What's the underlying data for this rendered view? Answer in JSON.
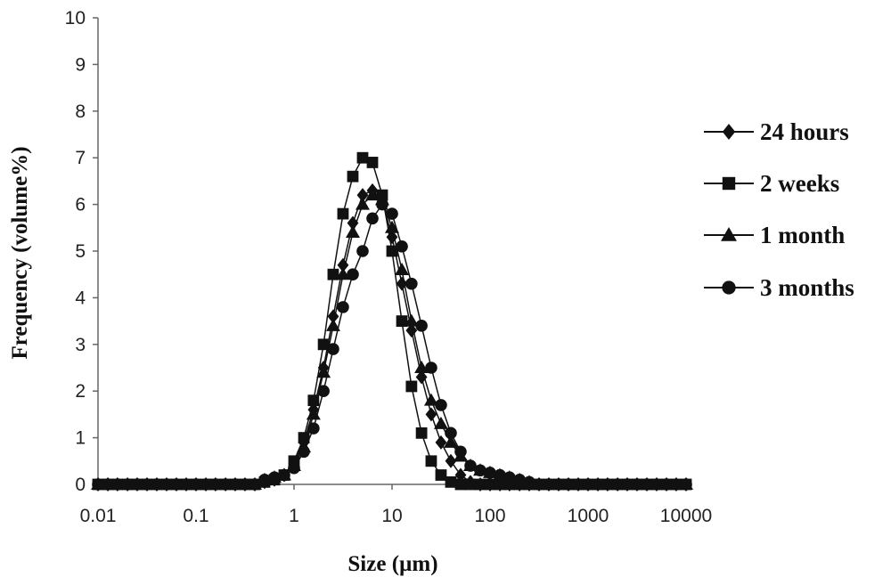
{
  "chart_data": {
    "type": "scatter",
    "title": "",
    "xlabel": "Size (µm)",
    "ylabel": "Frequency (volume%)",
    "xscale": "log",
    "xlim": [
      0.01,
      10000
    ],
    "ylim": [
      0,
      10
    ],
    "xticks": [
      "0.01",
      "0.1",
      "1",
      "10",
      "100",
      "1000",
      "10000"
    ],
    "yticks": [
      "0",
      "1",
      "2",
      "3",
      "4",
      "5",
      "6",
      "7",
      "8",
      "9",
      "10"
    ],
    "grid": false,
    "legend": "right",
    "series": [
      {
        "name": "24 hours",
        "marker": "diamond",
        "x": [
          0.01,
          0.0126,
          0.0158,
          0.02,
          0.0251,
          0.0316,
          0.0398,
          0.0501,
          0.0631,
          0.0794,
          0.1,
          0.126,
          0.158,
          0.2,
          0.251,
          0.316,
          0.398,
          0.501,
          0.631,
          0.794,
          1,
          1.26,
          1.58,
          2,
          2.51,
          3.16,
          3.98,
          5.01,
          6.31,
          7.94,
          10,
          12.6,
          15.8,
          20,
          25.1,
          31.6,
          39.8,
          50.1,
          63.1,
          79.4,
          100,
          126,
          158,
          200,
          251,
          316,
          398,
          501,
          631,
          794,
          1000,
          1260,
          1580,
          2000,
          2510,
          3160,
          3980,
          5010,
          6310,
          7940,
          10000
        ],
        "y": [
          0,
          0,
          0,
          0,
          0,
          0,
          0,
          0,
          0,
          0,
          0,
          0,
          0,
          0,
          0,
          0,
          0,
          0.05,
          0.1,
          0.2,
          0.45,
          0.9,
          1.6,
          2.5,
          3.6,
          4.7,
          5.6,
          6.2,
          6.3,
          6.1,
          5.3,
          4.3,
          3.3,
          2.3,
          1.5,
          0.9,
          0.5,
          0.2,
          0.05,
          0,
          0,
          0,
          0,
          0,
          0,
          0,
          0,
          0,
          0,
          0,
          0,
          0,
          0,
          0,
          0,
          0,
          0,
          0,
          0,
          0,
          0
        ]
      },
      {
        "name": "2 weeks",
        "marker": "square",
        "x": [
          0.01,
          0.0126,
          0.0158,
          0.02,
          0.0251,
          0.0316,
          0.0398,
          0.0501,
          0.0631,
          0.0794,
          0.1,
          0.126,
          0.158,
          0.2,
          0.251,
          0.316,
          0.398,
          0.501,
          0.631,
          0.794,
          1,
          1.26,
          1.58,
          2,
          2.51,
          3.16,
          3.98,
          5.01,
          6.31,
          7.94,
          10,
          12.6,
          15.8,
          20,
          25.1,
          31.6,
          39.8,
          50.1,
          63.1,
          79.4,
          100,
          126,
          158,
          200,
          251,
          316,
          398,
          501,
          631,
          794,
          1000,
          1260,
          1580,
          2000,
          2510,
          3160,
          3980,
          5010,
          6310,
          7940,
          10000
        ],
        "y": [
          0,
          0,
          0,
          0,
          0,
          0,
          0,
          0,
          0,
          0,
          0,
          0,
          0,
          0,
          0,
          0,
          0,
          0.05,
          0.1,
          0.2,
          0.5,
          1.0,
          1.8,
          3.0,
          4.5,
          5.8,
          6.6,
          7.0,
          6.9,
          6.2,
          5.0,
          3.5,
          2.1,
          1.1,
          0.5,
          0.2,
          0.05,
          0,
          0,
          0,
          0,
          0,
          0,
          0,
          0,
          0,
          0,
          0,
          0,
          0,
          0,
          0,
          0,
          0,
          0,
          0,
          0,
          0,
          0,
          0,
          0
        ]
      },
      {
        "name": "1 month",
        "marker": "triangle",
        "x": [
          0.01,
          0.0126,
          0.0158,
          0.02,
          0.0251,
          0.0316,
          0.0398,
          0.0501,
          0.0631,
          0.0794,
          0.1,
          0.126,
          0.158,
          0.2,
          0.251,
          0.316,
          0.398,
          0.501,
          0.631,
          0.794,
          1,
          1.26,
          1.58,
          2,
          2.51,
          3.16,
          3.98,
          5.01,
          6.31,
          7.94,
          10,
          12.6,
          15.8,
          20,
          25.1,
          31.6,
          39.8,
          50.1,
          63.1,
          79.4,
          100,
          126,
          158,
          200,
          251,
          316,
          398,
          501,
          631,
          794,
          1000,
          1260,
          1580,
          2000,
          2510,
          3160,
          3980,
          5010,
          6310,
          7940,
          10000
        ],
        "y": [
          0,
          0,
          0,
          0,
          0,
          0,
          0,
          0,
          0,
          0,
          0,
          0,
          0,
          0,
          0,
          0,
          0,
          0.1,
          0.15,
          0.2,
          0.4,
          0.8,
          1.5,
          2.4,
          3.4,
          4.5,
          5.4,
          6.0,
          6.2,
          6.1,
          5.5,
          4.6,
          3.5,
          2.5,
          1.8,
          1.3,
          0.9,
          0.6,
          0.4,
          0.3,
          0.25,
          0.2,
          0.15,
          0.1,
          0.05,
          0,
          0,
          0,
          0,
          0,
          0,
          0,
          0,
          0,
          0,
          0,
          0,
          0,
          0,
          0,
          0
        ]
      },
      {
        "name": "3 months",
        "marker": "circle",
        "x": [
          0.01,
          0.0126,
          0.0158,
          0.02,
          0.0251,
          0.0316,
          0.0398,
          0.0501,
          0.0631,
          0.0794,
          0.1,
          0.126,
          0.158,
          0.2,
          0.251,
          0.316,
          0.398,
          0.501,
          0.631,
          0.794,
          1,
          1.26,
          1.58,
          2,
          2.51,
          3.16,
          3.98,
          5.01,
          6.31,
          7.94,
          10,
          12.6,
          15.8,
          20,
          25.1,
          31.6,
          39.8,
          50.1,
          63.1,
          79.4,
          100,
          126,
          158,
          200,
          251,
          316,
          398,
          501,
          631,
          794,
          1000,
          1260,
          1580,
          2000,
          2510,
          3160,
          3980,
          5010,
          6310,
          7940,
          10000
        ],
        "y": [
          0,
          0,
          0,
          0,
          0,
          0,
          0,
          0,
          0,
          0,
          0,
          0,
          0,
          0,
          0,
          0,
          0,
          0.1,
          0.15,
          0.2,
          0.35,
          0.7,
          1.2,
          2.0,
          2.9,
          3.8,
          4.5,
          5.0,
          5.7,
          6.0,
          5.8,
          5.1,
          4.3,
          3.4,
          2.5,
          1.7,
          1.1,
          0.7,
          0.4,
          0.3,
          0.25,
          0.2,
          0.15,
          0.1,
          0.05,
          0,
          0,
          0,
          0,
          0,
          0,
          0,
          0,
          0,
          0,
          0,
          0,
          0,
          0,
          0,
          0
        ]
      }
    ]
  }
}
